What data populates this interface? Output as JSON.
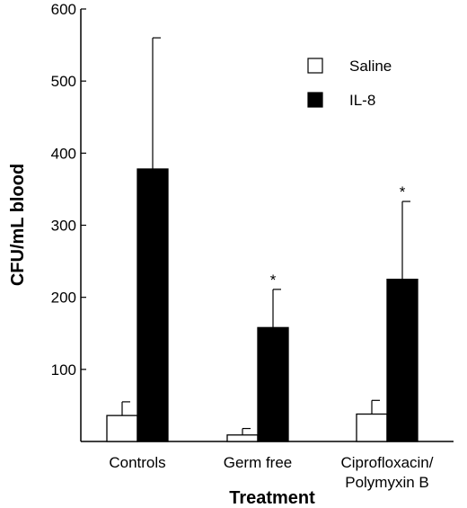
{
  "chart_data": {
    "type": "bar",
    "title": "",
    "xlabel": "Treatment",
    "ylabel": "CFU/mL blood",
    "ylim": [
      0,
      600
    ],
    "yticks": [
      100,
      200,
      300,
      400,
      500,
      600
    ],
    "categories": [
      {
        "lines": [
          "Controls"
        ]
      },
      {
        "lines": [
          "Germ free"
        ]
      },
      {
        "lines": [
          "Ciprofloxacin/",
          "Polymyxin B"
        ]
      }
    ],
    "series": [
      {
        "name": "Saline",
        "color": "#ffffff",
        "values": [
          36,
          9,
          38
        ],
        "errors": [
          19,
          9,
          19
        ]
      },
      {
        "name": "IL-8",
        "color": "#000000",
        "values": [
          378,
          158,
          225
        ],
        "errors": [
          182,
          53,
          108
        ]
      }
    ],
    "annotations": [
      {
        "category_index": 1,
        "series_index": 1,
        "text": "*"
      },
      {
        "category_index": 2,
        "series_index": 1,
        "text": "*"
      }
    ],
    "legend_position": "top-right",
    "grid": false
  }
}
